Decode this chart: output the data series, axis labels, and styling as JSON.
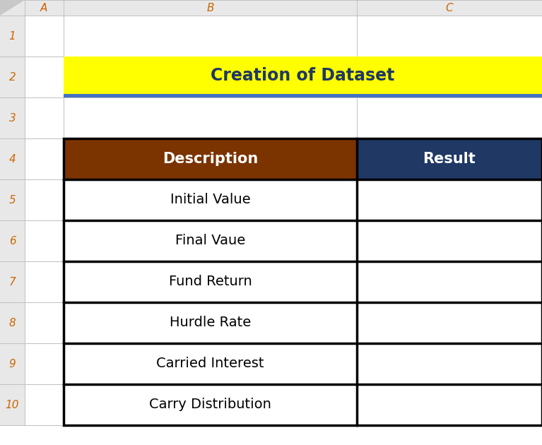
{
  "title": "Creation of Dataset",
  "title_bg": "#FFFF00",
  "title_text_color": "#1F3864",
  "header_row": [
    "Description",
    "Result"
  ],
  "header_bg_col1": "#7B3300",
  "header_bg_col2": "#1F3864",
  "header_text_color": "#FFFFFF",
  "rows": [
    [
      "Initial Value",
      ""
    ],
    [
      "Final Vaue",
      ""
    ],
    [
      "Fund Return",
      ""
    ],
    [
      "Hurdle Rate",
      ""
    ],
    [
      "Carried Interest",
      ""
    ],
    [
      "Carry Distribution",
      ""
    ]
  ],
  "row_bg": "#FFFFFF",
  "row_text_color": "#000000",
  "grid_color": "#000000",
  "col_headers": [
    "A",
    "B",
    "C"
  ],
  "row_numbers": [
    "1",
    "2",
    "3",
    "4",
    "5",
    "6",
    "7",
    "8",
    "9",
    "10"
  ],
  "bg_color": "#FFFFFF",
  "header_row_bg": "#E8E8E8",
  "row_num_bg": "#E8E8E8",
  "col_border_color": "#C0C0C0",
  "row_num_text_color": "#CC6600",
  "col_header_text_color": "#CC6600",
  "blue_underline_color": "#4472C4",
  "corner_triangle_color": "#C8C8C8",
  "table_border_lw": 2.5,
  "thin_lw": 0.7
}
